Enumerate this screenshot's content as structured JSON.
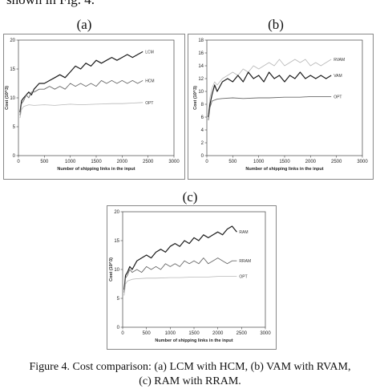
{
  "header": {
    "top_text": "shown in Fig. 4."
  },
  "panels": [
    {
      "label": "(a)"
    },
    {
      "label": "(b)"
    },
    {
      "label": "(c)"
    }
  ],
  "caption": {
    "line1": "Figure 4. Cost comparison: (a) LCM with HCM, (b) VAM with RVAM,",
    "line2": "(c) RAM with RRAM."
  },
  "colors": {
    "dark": "#1a1a1a",
    "mid": "#6a6a6a",
    "light": "#b8b8b8"
  },
  "chart_data": [
    {
      "type": "line",
      "xlabel": "Number of shipping links in the input",
      "ylabel": "Cost (10^3)",
      "xlim": [
        0,
        3000
      ],
      "ylim": [
        0,
        20
      ],
      "xticks": [
        0,
        500,
        1000,
        1500,
        2000,
        2500,
        3000
      ],
      "yticks": [
        0,
        5,
        10,
        15,
        20
      ],
      "series": [
        {
          "name": "LCM",
          "color": "dark",
          "x": [
            30,
            60,
            100,
            150,
            200,
            250,
            300,
            400,
            500,
            600,
            700,
            800,
            900,
            1000,
            1100,
            1200,
            1300,
            1400,
            1500,
            1600,
            1700,
            1800,
            1900,
            2000,
            2100,
            2200,
            2300,
            2400
          ],
          "y": [
            7.5,
            9.5,
            10.0,
            10.5,
            11.0,
            10.5,
            11.5,
            12.5,
            12.5,
            13.0,
            13.5,
            14.0,
            13.5,
            14.5,
            15.5,
            15.0,
            16.0,
            15.5,
            16.5,
            16.0,
            16.5,
            17.0,
            16.5,
            17.0,
            17.5,
            17.0,
            17.5,
            18.0
          ]
        },
        {
          "name": "HCM",
          "color": "mid",
          "x": [
            30,
            60,
            100,
            150,
            200,
            250,
            300,
            400,
            500,
            600,
            700,
            800,
            900,
            1000,
            1100,
            1200,
            1300,
            1400,
            1500,
            1600,
            1700,
            1800,
            1900,
            2000,
            2100,
            2200,
            2300,
            2400
          ],
          "y": [
            7.0,
            9.0,
            9.5,
            10.5,
            10.0,
            11.0,
            11.0,
            11.5,
            11.5,
            12.0,
            11.5,
            12.0,
            11.5,
            12.5,
            12.0,
            12.5,
            12.0,
            12.5,
            12.0,
            13.0,
            12.5,
            13.0,
            12.5,
            13.0,
            12.5,
            13.0,
            12.5,
            13.0
          ]
        },
        {
          "name": "OPT",
          "color": "light",
          "x": [
            30,
            60,
            100,
            200,
            300,
            500,
            700,
            1000,
            1200,
            1500,
            1800,
            2000,
            2200,
            2400
          ],
          "y": [
            6.5,
            8.0,
            8.5,
            8.8,
            8.7,
            8.8,
            8.7,
            8.9,
            8.8,
            8.9,
            9.0,
            9.0,
            9.1,
            9.2
          ]
        }
      ]
    },
    {
      "type": "line",
      "xlabel": "Number of shipping links in the input",
      "ylabel": "Cost (10^3)",
      "xlim": [
        0,
        3000
      ],
      "ylim": [
        0,
        18
      ],
      "xticks": [
        0,
        500,
        1000,
        1500,
        2000,
        2500,
        3000
      ],
      "yticks": [
        0,
        2,
        4,
        6,
        8,
        10,
        12,
        14,
        16,
        18
      ],
      "series": [
        {
          "name": "RVAM",
          "color": "light",
          "x": [
            30,
            60,
            100,
            150,
            200,
            300,
            400,
            500,
            600,
            700,
            800,
            900,
            1000,
            1100,
            1200,
            1300,
            1400,
            1500,
            1600,
            1700,
            1800,
            1900,
            2000,
            2100,
            2200,
            2300,
            2400
          ],
          "y": [
            6.5,
            9.0,
            10.5,
            11.5,
            11.0,
            12.0,
            12.5,
            13.0,
            12.5,
            13.5,
            13.0,
            14.0,
            13.5,
            14.0,
            14.5,
            14.0,
            15.0,
            14.0,
            14.5,
            15.0,
            14.5,
            15.0,
            14.0,
            14.5,
            14.0,
            14.5,
            15.0
          ]
        },
        {
          "name": "VAM",
          "color": "dark",
          "x": [
            30,
            60,
            100,
            150,
            200,
            300,
            400,
            500,
            600,
            700,
            800,
            900,
            1000,
            1100,
            1200,
            1300,
            1400,
            1500,
            1600,
            1700,
            1800,
            1900,
            2000,
            2100,
            2200,
            2300,
            2400
          ],
          "y": [
            6.0,
            8.0,
            9.5,
            11.0,
            10.0,
            11.5,
            12.0,
            11.5,
            12.5,
            11.5,
            13.0,
            12.0,
            12.5,
            11.5,
            13.0,
            12.0,
            12.5,
            11.5,
            12.5,
            12.0,
            13.0,
            12.0,
            12.5,
            12.0,
            12.5,
            12.0,
            12.5
          ]
        },
        {
          "name": "OPT",
          "color": "mid",
          "x": [
            30,
            60,
            100,
            200,
            300,
            500,
            700,
            1000,
            1200,
            1500,
            1800,
            2000,
            2200,
            2400
          ],
          "y": [
            5.5,
            7.5,
            8.5,
            8.8,
            8.9,
            9.0,
            8.9,
            9.0,
            9.0,
            9.1,
            9.1,
            9.2,
            9.2,
            9.2
          ]
        }
      ]
    },
    {
      "type": "line",
      "xlabel": "Number of shipping links in the input",
      "ylabel": "Cost (10^3)",
      "xlim": [
        0,
        3000
      ],
      "ylim": [
        0,
        20
      ],
      "xticks": [
        0,
        500,
        1000,
        1500,
        2000,
        2500,
        3000
      ],
      "yticks": [
        0,
        5,
        10,
        15,
        20
      ],
      "series": [
        {
          "name": "RAM",
          "color": "dark",
          "x": [
            30,
            60,
            100,
            150,
            200,
            300,
            400,
            500,
            600,
            700,
            800,
            900,
            1000,
            1100,
            1200,
            1300,
            1400,
            1500,
            1600,
            1700,
            1800,
            1900,
            2000,
            2100,
            2200,
            2300,
            2400
          ],
          "y": [
            6.5,
            9.0,
            9.5,
            10.5,
            10.0,
            11.5,
            12.0,
            12.5,
            12.0,
            13.0,
            13.5,
            13.0,
            14.0,
            14.5,
            14.0,
            15.0,
            14.5,
            15.5,
            15.0,
            16.0,
            15.5,
            16.0,
            16.5,
            16.0,
            17.0,
            17.5,
            16.5
          ]
        },
        {
          "name": "RRAM",
          "color": "mid",
          "x": [
            30,
            60,
            100,
            150,
            200,
            300,
            400,
            500,
            600,
            700,
            800,
            900,
            1000,
            1100,
            1200,
            1300,
            1400,
            1500,
            1600,
            1700,
            1800,
            1900,
            2000,
            2100,
            2200,
            2300,
            2400
          ],
          "y": [
            6.0,
            8.5,
            9.0,
            10.0,
            9.5,
            10.0,
            9.5,
            10.5,
            10.0,
            10.5,
            10.0,
            11.0,
            10.5,
            11.0,
            10.5,
            11.5,
            11.0,
            11.5,
            11.0,
            12.0,
            11.0,
            11.5,
            12.0,
            11.5,
            11.0,
            11.5,
            11.5
          ]
        },
        {
          "name": "OPT",
          "color": "light",
          "x": [
            30,
            60,
            100,
            200,
            300,
            500,
            700,
            1000,
            1200,
            1500,
            1800,
            2000,
            2200,
            2400
          ],
          "y": [
            5.5,
            7.5,
            8.0,
            8.3,
            8.4,
            8.5,
            8.5,
            8.6,
            8.6,
            8.7,
            8.7,
            8.8,
            8.8,
            8.8
          ]
        }
      ]
    }
  ]
}
